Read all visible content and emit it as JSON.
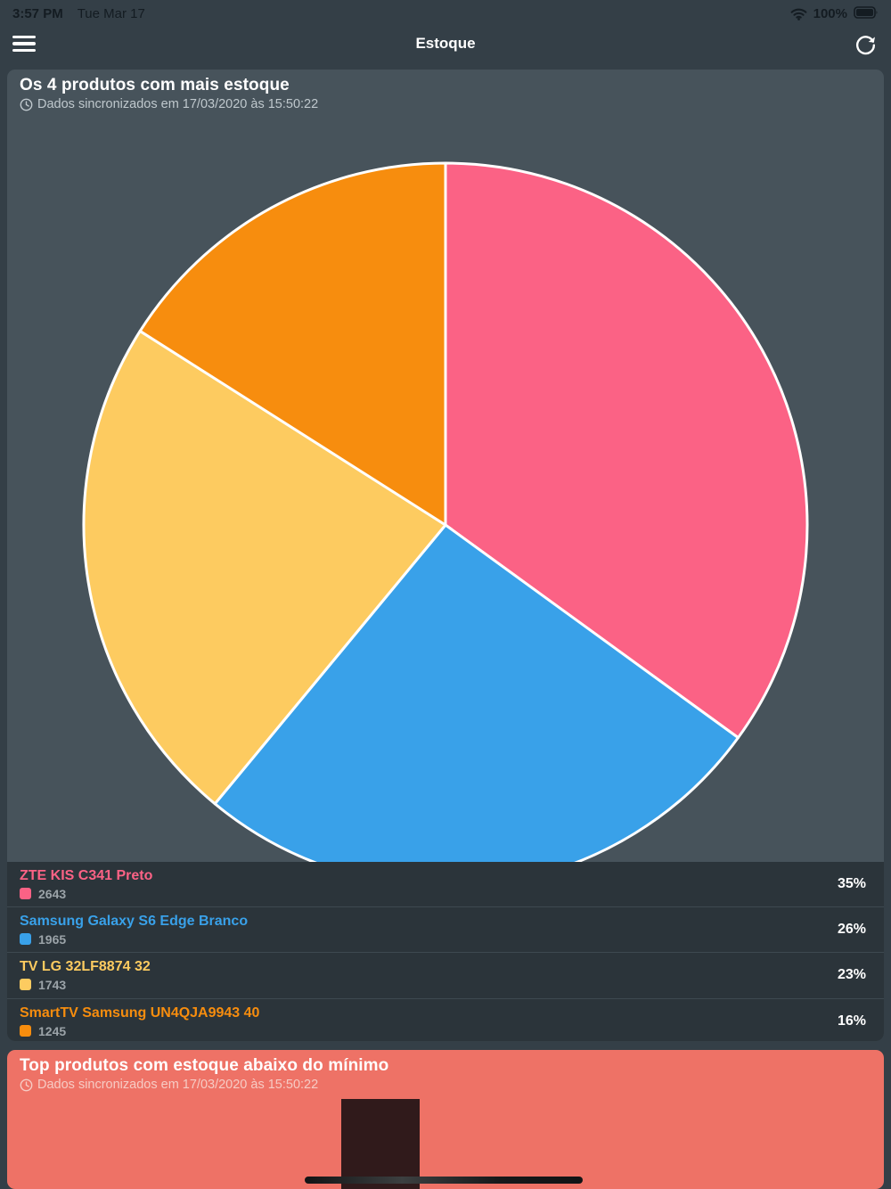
{
  "status_bar": {
    "time": "3:57 PM",
    "date": "Tue Mar 17",
    "battery": "100%"
  },
  "nav": {
    "title": "Estoque"
  },
  "top_card": {
    "title": "Os 4 produtos com mais estoque",
    "sync_text": "Dados sincronizados em 17/03/2020 às 15:50:22"
  },
  "bottom_card": {
    "title": "Top produtos com estoque abaixo do mínimo",
    "sync_text": "Dados sincronizados em 17/03/2020 às 15:50:22"
  },
  "chart_data": [
    {
      "type": "pie",
      "title": "Os 4 produtos com mais estoque",
      "labels": [
        "ZTE KIS C341 Preto",
        "Samsung Galaxy S6 Edge Branco",
        "TV LG 32LF8874 32",
        "SmartTV Samsung UN4QJA9943 40"
      ],
      "values": [
        2643,
        1965,
        1743,
        1245
      ],
      "percents": [
        35,
        26,
        23,
        16
      ],
      "percent_labels": [
        "35%",
        "26%",
        "23%",
        "16%"
      ],
      "colors": [
        "#FB6285",
        "#39A1E9",
        "#FDCB60",
        "#F78D0E"
      ],
      "slice_border_color": "#FFFFFF",
      "start_angle_deg": -90,
      "direction": "clockwise",
      "legend_position": "bottom"
    },
    {
      "type": "bar",
      "title": "Top produtos com estoque abaixo do mínimo",
      "visibility": "partial (cut off at bottom of screen)",
      "visible_bars": 1,
      "bar_color": "#301A1B",
      "threshold_line_color": "#1B1E20",
      "background_color": "#EE7266"
    }
  ]
}
